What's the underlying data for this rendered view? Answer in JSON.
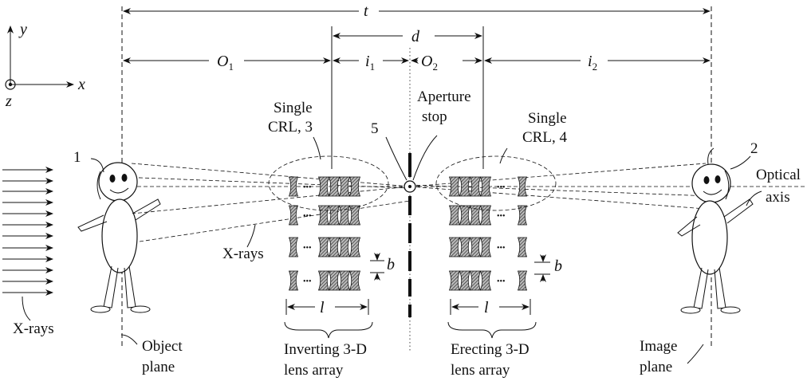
{
  "axes": {
    "x": "x",
    "y": "y",
    "z": "z"
  },
  "dims": {
    "t": "t",
    "d": "d",
    "O1": "O",
    "O1_sub": "1",
    "i1": "i",
    "i1_sub": "1",
    "O2": "O",
    "O2_sub": "2",
    "i2": "i",
    "i2_sub": "2",
    "l_left": "l",
    "l_right": "l",
    "b_left": "b",
    "b_right": "b"
  },
  "labels": {
    "num1": "1",
    "num2": "2",
    "num5": "5",
    "single_crl3_line1": "Single",
    "single_crl3_line2": "CRL, 3",
    "single_crl4_line1": "Single",
    "single_crl4_line2": "CRL, 4",
    "aperture_line1": "Aperture",
    "aperture_line2": "stop",
    "optical_line1": "Optical",
    "optical_line2": "axis",
    "xrays_mid": "X-rays",
    "xrays_left": "X-rays",
    "object_line1": "Object",
    "object_line2": "plane",
    "inverting_line1": "Inverting 3-D",
    "inverting_line2": "lens array",
    "erecting_line1": "Erecting 3-D",
    "erecting_line2": "lens array",
    "image_line1": "Image",
    "image_line2": "plane",
    "ellipsis": "•••"
  }
}
